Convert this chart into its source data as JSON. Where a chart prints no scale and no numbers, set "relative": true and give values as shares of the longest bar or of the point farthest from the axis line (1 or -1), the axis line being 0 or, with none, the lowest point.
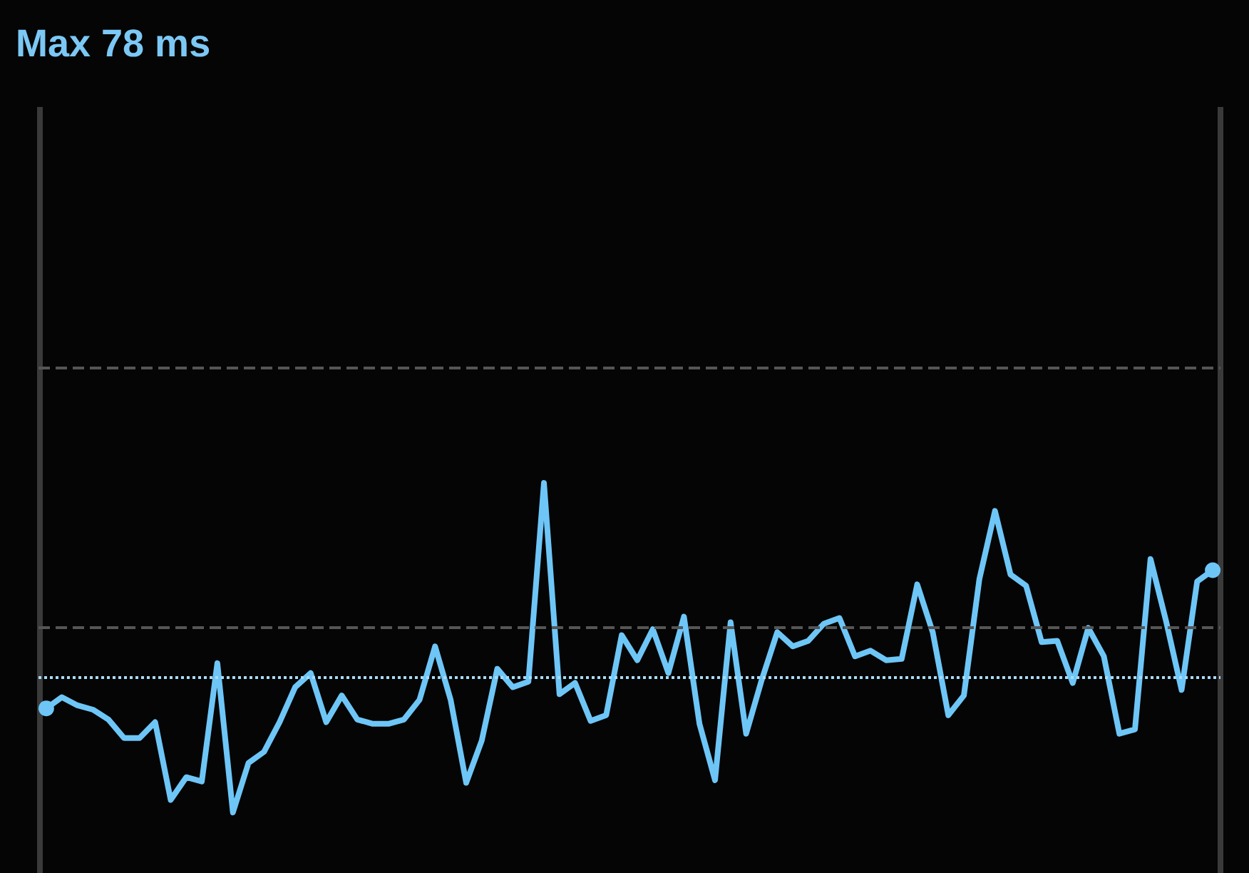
{
  "chart_data": {
    "type": "line",
    "title": "Max 78 ms",
    "relative": true,
    "categories": [
      null,
      null,
      null,
      null,
      null,
      null,
      null,
      null,
      null,
      null,
      null,
      null,
      null,
      null,
      null,
      null,
      null,
      null,
      null,
      null,
      null,
      null,
      null,
      null,
      null,
      null,
      null,
      null,
      null,
      null,
      null,
      null,
      null,
      null,
      null,
      null,
      null,
      null,
      null,
      null,
      null,
      null,
      null,
      null,
      null,
      null,
      null,
      null,
      null,
      null,
      null,
      null,
      null,
      null,
      null,
      null,
      null,
      null,
      null,
      null,
      null,
      null,
      null,
      null,
      null,
      null,
      null,
      null,
      null,
      null,
      null,
      null,
      null,
      null,
      null,
      null
    ],
    "series": [
      {
        "color": "#6ec6f7",
        "values": [
          0.316,
          0.35,
          0.325,
          0.312,
          0.282,
          0.226,
          0.226,
          0.274,
          0.038,
          0.107,
          0.094,
          0.453,
          0,
          0.15,
          0.184,
          0.274,
          0.38,
          0.423,
          0.274,
          0.355,
          0.282,
          0.269,
          0.269,
          0.282,
          0.342,
          0.504,
          0.342,
          0.09,
          0.218,
          0.436,
          0.38,
          0.397,
          1,
          0.359,
          0.393,
          0.278,
          0.295,
          0.538,
          0.462,
          0.556,
          0.423,
          0.594,
          0.269,
          0.098,
          0.577,
          0.239,
          0.402,
          0.547,
          0.504,
          0.521,
          0.573,
          0.59,
          0.474,
          0.491,
          0.462,
          0.466,
          0.692,
          0.547,
          0.295,
          0.355,
          0.709,
          0.915,
          0.722,
          0.688,
          0.517,
          0.521,
          0.393,
          0.56,
          0.474,
          0.239,
          0.252,
          0.769,
          0.581,
          0.372,
          0.701,
          0.735
        ]
      }
    ],
    "ref_lines": [
      {
        "axis": "y",
        "value": 1.355,
        "color": "#555555",
        "line_style": "dashed"
      },
      {
        "axis": "y",
        "value": 0.556,
        "color": "#555555",
        "line_style": "dashed"
      },
      {
        "axis": "y",
        "value": 0.415,
        "color": "#a8dcf8",
        "line_style": "dotted"
      }
    ],
    "line_style": "solid"
  }
}
